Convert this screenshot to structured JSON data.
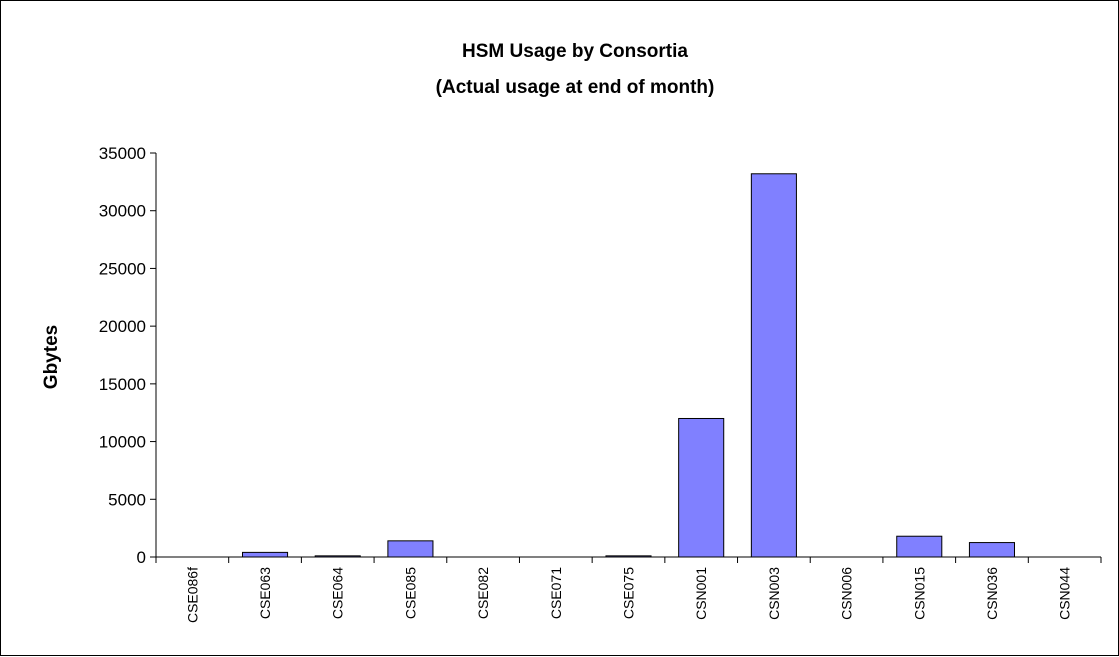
{
  "chart_data": {
    "type": "bar",
    "title": "HSM Usage by Consortia",
    "subtitle": "(Actual usage at end of month)",
    "xlabel": "",
    "ylabel": "Gbytes",
    "ylim": [
      0,
      35000
    ],
    "yticks": [
      0,
      5000,
      10000,
      15000,
      20000,
      25000,
      30000,
      35000
    ],
    "categories": [
      "CSE086f",
      "CSE063",
      "CSE064",
      "CSE085",
      "CSE082",
      "CSE071",
      "CSE075",
      "CSN001",
      "CSN003",
      "CSN006",
      "CSN015",
      "CSN036",
      "CSN044"
    ],
    "values": [
      0,
      400,
      100,
      1400,
      0,
      0,
      100,
      12000,
      33200,
      0,
      1800,
      1250,
      0
    ],
    "grid": false,
    "legend": "none",
    "colors": {
      "bar_fill": "#8080ff",
      "bar_stroke": "#000000",
      "axis": "#000000"
    }
  }
}
